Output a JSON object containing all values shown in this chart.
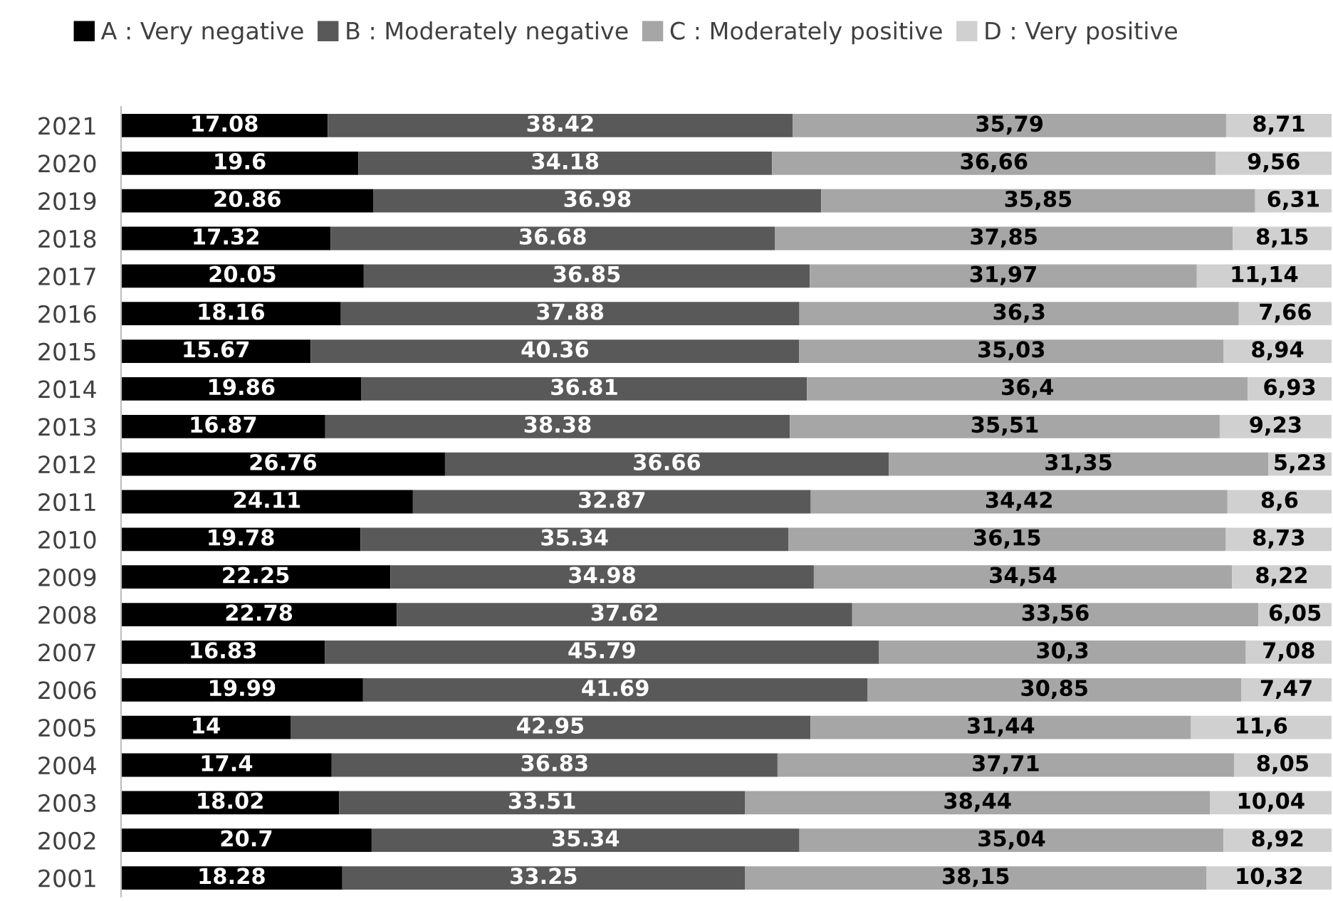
{
  "chart_data": {
    "type": "bar",
    "orientation": "horizontal",
    "stacked": true,
    "legend": "top",
    "tick_labels": "y",
    "xlim": [
      0,
      100
    ],
    "categories": [
      "2021",
      "2020",
      "2019",
      "2018",
      "2017",
      "2016",
      "2015",
      "2014",
      "2013",
      "2012",
      "2011",
      "2010",
      "2009",
      "2008",
      "2007",
      "2006",
      "2005",
      "2004",
      "2003",
      "2002",
      "2001"
    ],
    "series": [
      {
        "name": "A : Very negative",
        "color": "#000000",
        "values": [
          17.08,
          19.6,
          20.86,
          17.32,
          20.05,
          18.16,
          15.67,
          19.86,
          16.87,
          26.76,
          24.11,
          19.78,
          22.25,
          22.78,
          16.83,
          19.99,
          14,
          17.4,
          18.02,
          20.7,
          18.28
        ],
        "value_labels": [
          "17.08",
          "19.6",
          "20.86",
          "17.32",
          "20.05",
          "18.16",
          "15.67",
          "19.86",
          "16.87",
          "26.76",
          "24.11",
          "19.78",
          "22.25",
          "22.78",
          "16.83",
          "19.99",
          "14",
          "17.4",
          "18.02",
          "20.7",
          "18.28"
        ]
      },
      {
        "name": "B : Moderately negative",
        "color": "#595959",
        "values": [
          38.42,
          34.18,
          36.98,
          36.68,
          36.85,
          37.88,
          40.36,
          36.81,
          38.38,
          36.66,
          32.87,
          35.34,
          34.98,
          37.62,
          45.79,
          41.69,
          42.95,
          36.83,
          33.51,
          35.34,
          33.25
        ],
        "value_labels": [
          "38.42",
          "34.18",
          "36.98",
          "36.68",
          "36.85",
          "37.88",
          "40.36",
          "36.81",
          "38.38",
          "36.66",
          "32.87",
          "35.34",
          "34.98",
          "37.62",
          "45.79",
          "41.69",
          "42.95",
          "36.83",
          "33.51",
          "35.34",
          "33.25"
        ]
      },
      {
        "name": "C : Moderately positive",
        "color": "#a6a6a6",
        "values": [
          35.79,
          36.66,
          35.85,
          37.85,
          31.97,
          36.3,
          35.03,
          36.4,
          35.51,
          31.35,
          34.42,
          36.15,
          34.54,
          33.56,
          30.3,
          30.85,
          31.44,
          37.71,
          38.44,
          35.04,
          38.15
        ],
        "value_labels": [
          "35,79",
          "36,66",
          "35,85",
          "37,85",
          "31,97",
          "36,3",
          "35,03",
          "36,4",
          "35,51",
          "31,35",
          "34,42",
          "36,15",
          "34,54",
          "33,56",
          "30,3",
          "30,85",
          "31,44",
          "37,71",
          "38,44",
          "35,04",
          "38,15"
        ]
      },
      {
        "name": "D : Very positive",
        "color": "#d0d0d0",
        "values": [
          8.71,
          9.56,
          6.31,
          8.15,
          11.14,
          7.66,
          8.94,
          6.93,
          9.23,
          5.23,
          8.6,
          8.73,
          8.22,
          6.05,
          7.08,
          7.47,
          11.6,
          8.05,
          10.04,
          8.92,
          10.32
        ],
        "value_labels": [
          "8,71",
          "9,56",
          "6,31",
          "8,15",
          "11,14",
          "7,66",
          "8,94",
          "6,93",
          "9,23",
          "5,23",
          "8,6",
          "8,73",
          "8,22",
          "6,05",
          "7,08",
          "7,47",
          "11,6",
          "8,05",
          "10,04",
          "8,92",
          "10,32"
        ]
      }
    ]
  }
}
